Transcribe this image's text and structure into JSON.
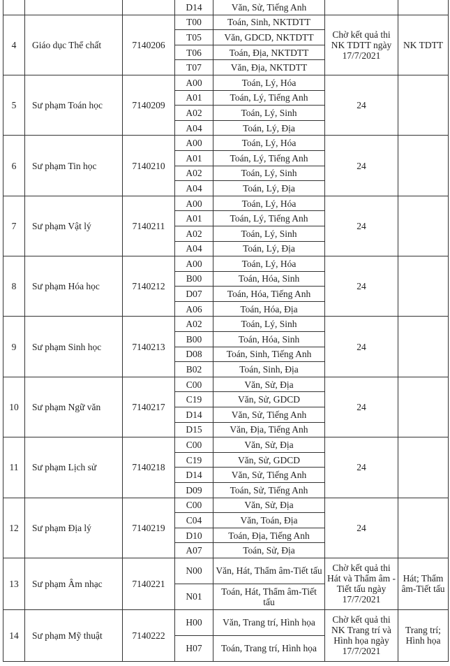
{
  "table": {
    "rows": [
      {
        "stt": "",
        "name": "",
        "code": "",
        "combos": [
          {
            "code": "D14",
            "subjects": "Văn, Sử, Tiếng Anh"
          }
        ],
        "score": "",
        "note": "",
        "cont": true
      },
      {
        "stt": "4",
        "name": "Giáo dục Thể chất",
        "code": "7140206",
        "combos": [
          {
            "code": "T00",
            "subjects": "Toán, Sinh, NKTDTT"
          },
          {
            "code": "T05",
            "subjects": "Văn, GDCD, NKTDTT"
          },
          {
            "code": "T06",
            "subjects": "Toán, Địa, NKTDTT"
          },
          {
            "code": "T07",
            "subjects": "Văn, Địa, NKTDTT"
          }
        ],
        "score": "Chờ kết quả thi NK TDTT ngày 17/7/2021",
        "note": "NK TDTT"
      },
      {
        "stt": "5",
        "name": "Sư phạm Toán học",
        "code": "7140209",
        "combos": [
          {
            "code": "A00",
            "subjects": "Toán, Lý, Hóa"
          },
          {
            "code": "A01",
            "subjects": "Toán, Lý, Tiếng Anh"
          },
          {
            "code": "A02",
            "subjects": "Toán, Lý, Sinh"
          },
          {
            "code": "A04",
            "subjects": "Toán, Lý, Địa"
          }
        ],
        "score": "24",
        "note": ""
      },
      {
        "stt": "6",
        "name": "Sư phạm Tin học",
        "code": "7140210",
        "combos": [
          {
            "code": "A00",
            "subjects": "Toán, Lý, Hóa"
          },
          {
            "code": "A01",
            "subjects": "Toán, Lý, Tiếng Anh"
          },
          {
            "code": "A02",
            "subjects": "Toán, Lý, Sinh"
          },
          {
            "code": "A04",
            "subjects": "Toán, Lý, Địa"
          }
        ],
        "score": "24",
        "note": ""
      },
      {
        "stt": "7",
        "name": "Sư phạm Vật lý",
        "code": "7140211",
        "combos": [
          {
            "code": "A00",
            "subjects": "Toán, Lý, Hóa"
          },
          {
            "code": "A01",
            "subjects": "Toán, Lý, Tiếng Anh"
          },
          {
            "code": "A02",
            "subjects": "Toán, Lý, Sinh"
          },
          {
            "code": "A04",
            "subjects": "Toán, Lý, Địa"
          }
        ],
        "score": "24",
        "note": ""
      },
      {
        "stt": "8",
        "name": "Sư phạm Hóa học",
        "code": "7140212",
        "combos": [
          {
            "code": "A00",
            "subjects": "Toán, Lý, Hóa"
          },
          {
            "code": "B00",
            "subjects": "Toán, Hóa, Sinh"
          },
          {
            "code": "D07",
            "subjects": "Toán, Hóa, Tiếng Anh"
          },
          {
            "code": "A06",
            "subjects": "Toán, Hóa, Địa"
          }
        ],
        "score": "24",
        "note": ""
      },
      {
        "stt": "9",
        "name": "Sư phạm Sinh học",
        "code": "7140213",
        "combos": [
          {
            "code": "A02",
            "subjects": "Toán, Lý, Sinh"
          },
          {
            "code": "B00",
            "subjects": "Toán, Hóa, Sinh"
          },
          {
            "code": "D08",
            "subjects": "Toán, Sinh, Tiếng Anh"
          },
          {
            "code": "B02",
            "subjects": "Toán, Sinh, Địa"
          }
        ],
        "score": "24",
        "note": ""
      },
      {
        "stt": "10",
        "name": "Sư phạm Ngữ văn",
        "code": "7140217",
        "combos": [
          {
            "code": "C00",
            "subjects": "Văn, Sử, Địa"
          },
          {
            "code": "C19",
            "subjects": "Văn, Sử, GDCD"
          },
          {
            "code": "D14",
            "subjects": "Văn, Sử, Tiếng Anh"
          },
          {
            "code": "D15",
            "subjects": "Văn, Địa, Tiếng Anh"
          }
        ],
        "score": "24",
        "note": ""
      },
      {
        "stt": "11",
        "name": "Sư phạm Lịch sử",
        "code": "7140218",
        "combos": [
          {
            "code": "C00",
            "subjects": "Văn, Sử, Địa"
          },
          {
            "code": "C19",
            "subjects": "Văn, Sử, GDCD"
          },
          {
            "code": "D14",
            "subjects": "Văn, Sử, Tiếng Anh"
          },
          {
            "code": "D09",
            "subjects": "Toán, Sử, Tiếng Anh"
          }
        ],
        "score": "24",
        "note": ""
      },
      {
        "stt": "12",
        "name": "Sư phạm Địa lý",
        "code": "7140219",
        "combos": [
          {
            "code": "C00",
            "subjects": "Văn, Sử, Địa"
          },
          {
            "code": "C04",
            "subjects": "Văn, Toán, Địa"
          },
          {
            "code": "D10",
            "subjects": "Toán, Địa, Tiếng Anh"
          },
          {
            "code": "A07",
            "subjects": "Toán, Sử, Địa"
          }
        ],
        "score": "24",
        "note": ""
      },
      {
        "stt": "13",
        "name": "Sư phạm Âm nhạc",
        "code": "7140221",
        "combos": [
          {
            "code": "N00",
            "subjects": "Văn, Hát, Thẩm âm-Tiết tấu"
          },
          {
            "code": "N01",
            "subjects": "Toán, Hát, Thẩm âm-Tiết tấu"
          }
        ],
        "score": "Chờ kết quả thi Hát và Thẩm âm - Tiết tấu ngày 17/7/2021",
        "note": "Hát; Thẩm âm-Tiết tấu",
        "tall": true
      },
      {
        "stt": "14",
        "name": "Sư phạm Mỹ thuật",
        "code": "7140222",
        "combos": [
          {
            "code": "H00",
            "subjects": "Văn, Trang trí, Hình họa"
          },
          {
            "code": "H07",
            "subjects": "Toán, Trang trí, Hình họa"
          }
        ],
        "score": "Chờ kết quả thi NK Trang trí và Hình họa ngày 17/7/2021",
        "note": "Trang trí; Hình họa",
        "tall": true
      }
    ]
  }
}
